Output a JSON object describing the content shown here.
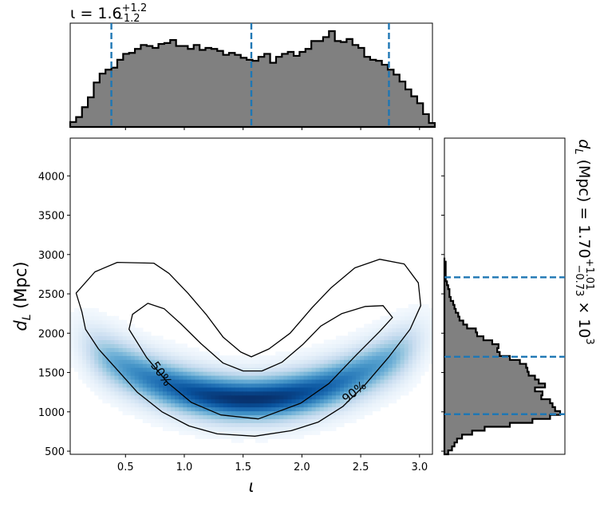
{
  "chart_data": {
    "type": "corner",
    "colors": {
      "hist_fill": "#808080",
      "hist_edge": "#000000",
      "quantile_line": "#1f77b4",
      "density_cmap": "Blues",
      "contour": "#000000"
    },
    "top_panel": {
      "type": "histogram",
      "title_main": "ι = 1.6",
      "title_sup": "+1.2",
      "title_sub": "−1.2",
      "xlim": [
        0.03,
        3.11
      ],
      "quantile_lines": [
        0.38,
        1.57,
        2.74
      ],
      "bin_width": 0.05,
      "bin_start": 0.03,
      "counts": [
        5,
        10,
        20,
        30,
        45,
        54,
        58,
        60,
        68,
        74,
        75,
        79,
        83,
        82,
        80,
        84,
        85,
        88,
        82,
        82,
        79,
        83,
        78,
        80,
        79,
        77,
        73,
        75,
        73,
        70,
        68,
        67,
        71,
        74,
        65,
        71,
        74,
        76,
        72,
        76,
        79,
        87,
        87,
        91,
        97,
        87,
        86,
        89,
        83,
        80,
        71,
        68,
        67,
        63,
        58,
        53,
        46,
        38,
        31,
        24,
        13,
        4
      ]
    },
    "main_panel": {
      "type": "heatmap",
      "xlabel": "ι",
      "ylabel_main": "d",
      "ylabel_sub": "L",
      "ylabel_unit": " (Mpc)",
      "xlim": [
        0.03,
        3.11
      ],
      "ylim": [
        460,
        4480
      ],
      "xticks": [
        0.5,
        1.0,
        1.5,
        2.0,
        2.5,
        3.0
      ],
      "xtick_labels": [
        "0.5",
        "1.0",
        "1.5",
        "2.0",
        "2.5",
        "3.0"
      ],
      "yticks": [
        500,
        1000,
        1500,
        2000,
        2500,
        3000,
        3500,
        4000
      ],
      "ytick_labels": [
        "500",
        "1000",
        "1500",
        "2000",
        "2500",
        "3000",
        "3500",
        "4000"
      ],
      "contour_labels": [
        "50%",
        "90%"
      ],
      "contour_90": [
        [
          0.13,
          2270
        ],
        [
          0.08,
          2510
        ],
        [
          0.24,
          2780
        ],
        [
          0.43,
          2900
        ],
        [
          0.74,
          2890
        ],
        [
          0.87,
          2760
        ],
        [
          1.03,
          2510
        ],
        [
          1.19,
          2230
        ],
        [
          1.33,
          1950
        ],
        [
          1.48,
          1760
        ],
        [
          1.57,
          1700
        ],
        [
          1.72,
          1800
        ],
        [
          1.9,
          2000
        ],
        [
          2.09,
          2330
        ],
        [
          2.25,
          2580
        ],
        [
          2.45,
          2830
        ],
        [
          2.66,
          2940
        ],
        [
          2.87,
          2880
        ],
        [
          2.99,
          2640
        ],
        [
          3.01,
          2350
        ],
        [
          2.92,
          2050
        ],
        [
          2.74,
          1700
        ],
        [
          2.54,
          1350
        ],
        [
          2.35,
          1070
        ],
        [
          2.14,
          870
        ],
        [
          1.91,
          760
        ],
        [
          1.6,
          690
        ],
        [
          1.28,
          720
        ],
        [
          1.04,
          820
        ],
        [
          0.81,
          1000
        ],
        [
          0.6,
          1250
        ],
        [
          0.42,
          1550
        ],
        [
          0.27,
          1800
        ],
        [
          0.16,
          2050
        ]
      ],
      "contour_50": [
        [
          0.53,
          2050
        ],
        [
          0.56,
          2240
        ],
        [
          0.69,
          2380
        ],
        [
          0.83,
          2310
        ],
        [
          0.97,
          2120
        ],
        [
          1.14,
          1870
        ],
        [
          1.33,
          1620
        ],
        [
          1.5,
          1520
        ],
        [
          1.66,
          1520
        ],
        [
          1.83,
          1630
        ],
        [
          2.01,
          1860
        ],
        [
          2.16,
          2090
        ],
        [
          2.34,
          2250
        ],
        [
          2.54,
          2340
        ],
        [
          2.69,
          2350
        ],
        [
          2.77,
          2200
        ],
        [
          2.66,
          2020
        ],
        [
          2.46,
          1720
        ],
        [
          2.23,
          1360
        ],
        [
          1.99,
          1110
        ],
        [
          1.63,
          910
        ],
        [
          1.31,
          960
        ],
        [
          1.06,
          1120
        ],
        [
          0.86,
          1370
        ],
        [
          0.68,
          1690
        ]
      ]
    },
    "right_panel": {
      "type": "histogram",
      "orientation": "horizontal",
      "title_main": "d",
      "title_sub_L": "L",
      "title_unit": " (Mpc) = 1.70",
      "title_sup": "+1.01",
      "title_sub": "−0.73",
      "title_tail": " × 10",
      "title_exp": "3",
      "ylim": [
        460,
        4480
      ],
      "quantile_lines": [
        970,
        1700,
        2710
      ],
      "bin_width": 50,
      "bin_start": 460,
      "counts": [
        3,
        6,
        8,
        10,
        14,
        22,
        32,
        52,
        70,
        84,
        92,
        88,
        86,
        84,
        77,
        78,
        72,
        80,
        75,
        72,
        67,
        66,
        65,
        60,
        52,
        44,
        42,
        43,
        38,
        31,
        26,
        25,
        18,
        15,
        12,
        11,
        9,
        8,
        7,
        5,
        4,
        4,
        3,
        2,
        1,
        1,
        1,
        1,
        1,
        0
      ]
    }
  }
}
